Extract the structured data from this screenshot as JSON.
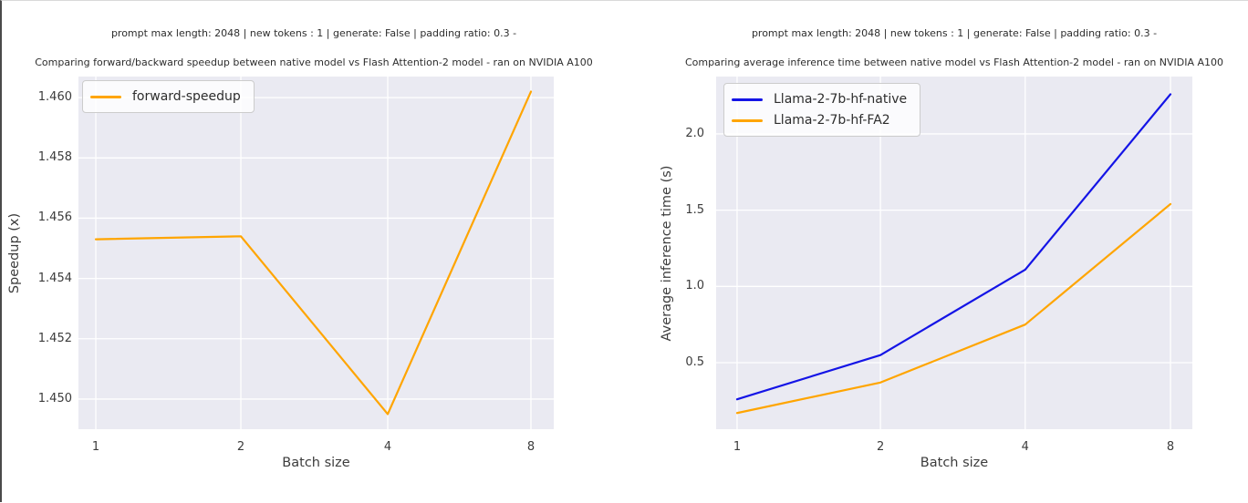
{
  "chart_data": [
    {
      "type": "line",
      "suptitle": "prompt max length: 2048 | new tokens : 1 | generate: False | padding ratio: 0.3 -",
      "title": "Comparing forward/backward speedup between native model vs Flash Attention-2 model - ran on NVIDIA A100",
      "xlabel": "Batch size",
      "ylabel": "Speedup (x)",
      "categories": [
        "1",
        "2",
        "4",
        "8"
      ],
      "series": [
        {
          "name": "forward-speedup",
          "color": "#ffa500",
          "values": [
            1.4553,
            1.4554,
            1.4495,
            1.4602
          ]
        }
      ],
      "ylim": [
        1.449,
        1.4607
      ],
      "yticks": [
        1.45,
        1.452,
        1.454,
        1.456,
        1.458,
        1.46
      ],
      "ytick_labels": [
        "1.450",
        "1.452",
        "1.454",
        "1.456",
        "1.458",
        "1.460"
      ],
      "grid": true,
      "legend_position": "upper left",
      "plot_bg": "#eaeaf2",
      "grid_color": "#ffffff"
    },
    {
      "type": "line",
      "suptitle": "prompt max length: 2048 | new tokens : 1 | generate: False | padding ratio: 0.3 -",
      "title": "Comparing average inference time between native model vs Flash Attention-2 model - ran on NVIDIA A100",
      "xlabel": "Batch size",
      "ylabel": "Average inference time (s)",
      "categories": [
        "1",
        "2",
        "4",
        "8"
      ],
      "series": [
        {
          "name": "Llama-2-7b-hf-native",
          "color": "#1414e6",
          "values": [
            0.26,
            0.55,
            1.11,
            2.26
          ]
        },
        {
          "name": "Llama-2-7b-hf-FA2",
          "color": "#ffa500",
          "values": [
            0.17,
            0.37,
            0.75,
            1.54
          ]
        }
      ],
      "ylim": [
        0.064,
        2.376
      ],
      "yticks": [
        0.5,
        1.0,
        1.5,
        2.0
      ],
      "ytick_labels": [
        "0.5",
        "1.0",
        "1.5",
        "2.0"
      ],
      "grid": true,
      "legend_position": "upper left",
      "plot_bg": "#eaeaf2",
      "grid_color": "#ffffff"
    }
  ]
}
